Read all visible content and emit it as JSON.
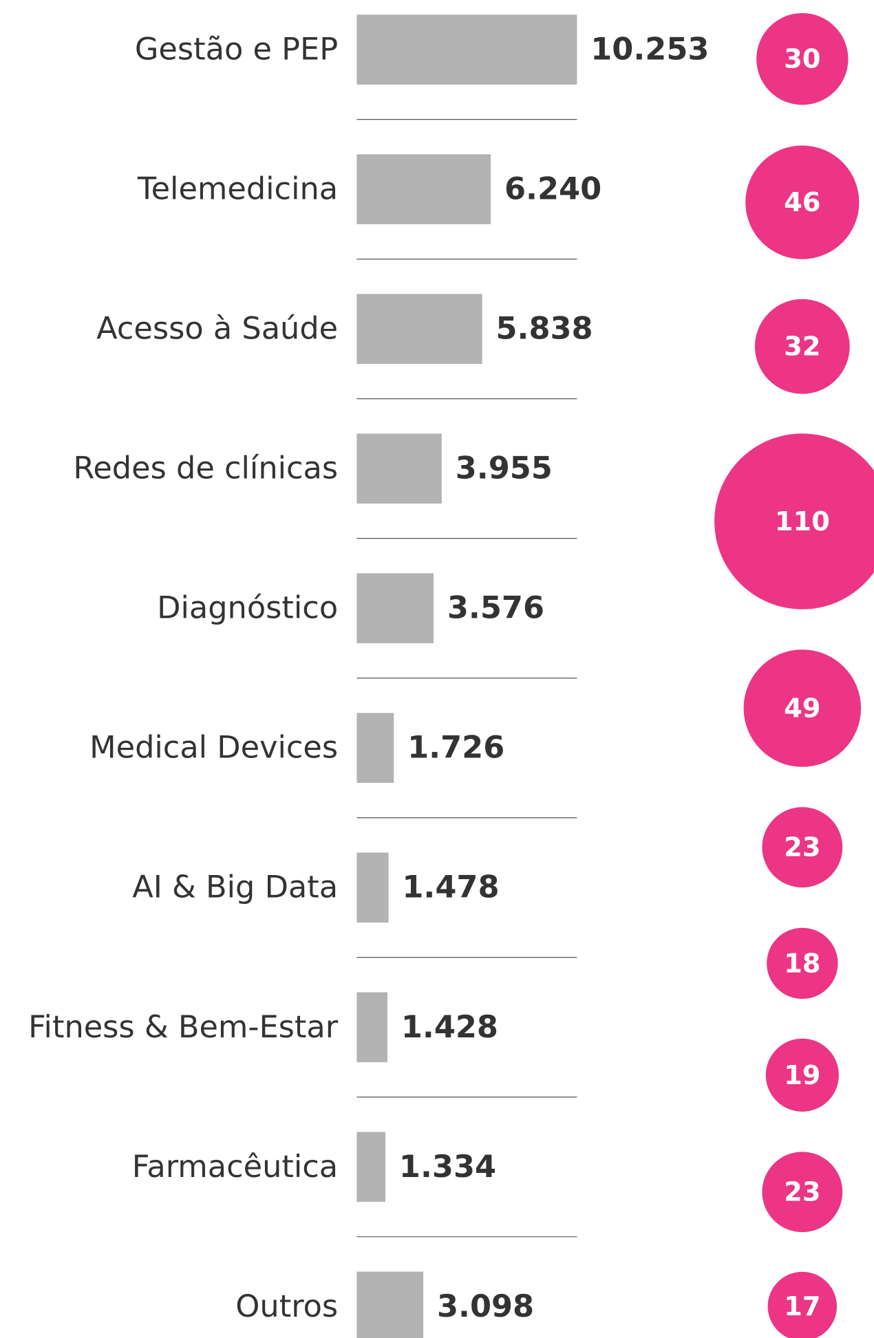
{
  "chart_data": {
    "type": "bar",
    "categories": [
      "Gestão e PEP",
      "Telemedicina",
      "Acesso à Saúde",
      "Redes de clínicas",
      "Diagnóstico",
      "Medical Devices",
      "AI & Big Data",
      "Fitness & Bem-Estar",
      "Farmacêutica",
      "Outros"
    ],
    "values": [
      10253,
      6240,
      5838,
      3955,
      3576,
      1726,
      1478,
      1428,
      1334,
      3098
    ],
    "value_labels": [
      "10.253",
      "6.240",
      "5.838",
      "3.955",
      "3.576",
      "1.726",
      "1.478",
      "1.428",
      "1.334",
      "3.098"
    ],
    "color": "#b3b3b3",
    "bubble_values": [
      30,
      46,
      32,
      110,
      49,
      23,
      18,
      19,
      23,
      17
    ],
    "bubble_color": "#ec3584"
  }
}
